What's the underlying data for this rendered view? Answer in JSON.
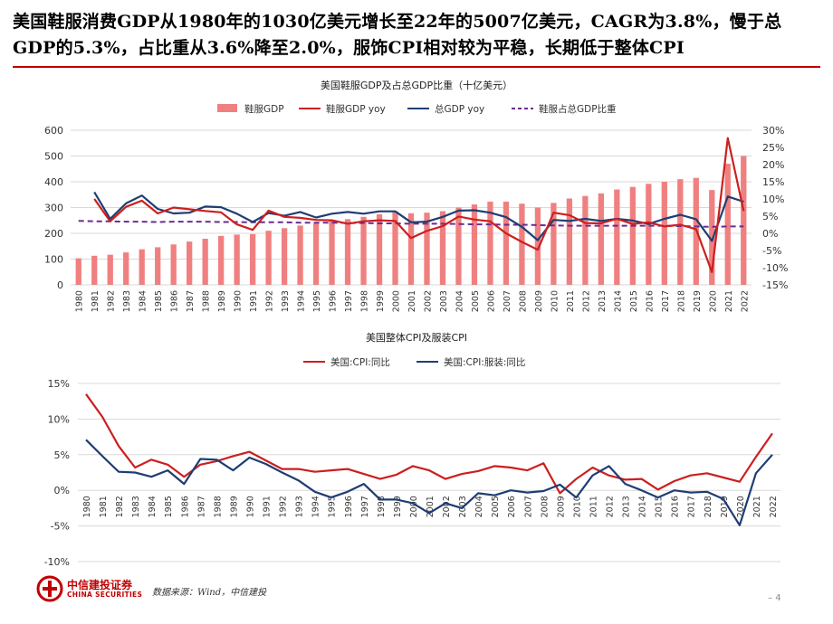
{
  "headline": "美国鞋服消费GDP从1980年的1030亿美元增长至22年的5007亿美元，CAGR为3.8%，慢于总GDP的5.3%，占比重从3.6%降至2.0%，服饰CPI相对较为平稳，长期低于整体CPI",
  "footer": {
    "logo_cn": "中信建投证券",
    "logo_en": "CHINA SECURITIES",
    "source": "数据来源：Wind，中信建投",
    "page_number": "4",
    "page_prefix": "–"
  },
  "colors": {
    "accent": "#c00000",
    "bar": "#f08080",
    "red_line": "#cc1f1f",
    "navy_line": "#1f3d73",
    "purple_dash": "#6a2c91",
    "grid": "#d9d9d9"
  },
  "chart_data": [
    {
      "type": "bar+line",
      "title": "美国鞋服GDP及占总GDP比重（十亿美元）",
      "legend_position": "top",
      "categories": [
        "1980",
        "1981",
        "1982",
        "1983",
        "1984",
        "1985",
        "1986",
        "1987",
        "1988",
        "1989",
        "1990",
        "1991",
        "1992",
        "1993",
        "1994",
        "1995",
        "1996",
        "1997",
        "1998",
        "1999",
        "2000",
        "2001",
        "2002",
        "2003",
        "2004",
        "2005",
        "2006",
        "2007",
        "2008",
        "2009",
        "2010",
        "2011",
        "2012",
        "2013",
        "2014",
        "2015",
        "2016",
        "2017",
        "2018",
        "2019",
        "2020",
        "2021",
        "2022"
      ],
      "y_left_ticks": [
        "0",
        "100",
        "200",
        "300",
        "400",
        "500",
        "600"
      ],
      "y_left_range": [
        0,
        600
      ],
      "y_right_ticks": [
        "30%",
        "25%",
        "20%",
        "15%",
        "10%",
        "5%",
        "0%",
        "-5%",
        "-10%",
        "-15%"
      ],
      "y_right_range": [
        -15,
        30
      ],
      "series": [
        {
          "name": "鞋服GDP",
          "axis": "left",
          "kind": "bar",
          "values": [
            103,
            113,
            117,
            126,
            138,
            146,
            157,
            168,
            179,
            190,
            195,
            197,
            210,
            220,
            230,
            239,
            248,
            255,
            264,
            274,
            284,
            278,
            280,
            286,
            300,
            312,
            323,
            323,
            315,
            300,
            318,
            335,
            345,
            355,
            370,
            380,
            392,
            400,
            410,
            415,
            368,
            470,
            500
          ]
        },
        {
          "name": "鞋服GDP yoy",
          "axis": "right",
          "kind": "line",
          "values": [
            null,
            10.0,
            3.5,
            7.7,
            9.5,
            5.8,
            7.5,
            7.0,
            6.5,
            6.1,
            2.6,
            1.0,
            6.6,
            4.8,
            4.5,
            3.9,
            3.8,
            2.8,
            3.5,
            3.8,
            3.6,
            -1.4,
            0.7,
            2.1,
            4.9,
            4.0,
            3.5,
            0.0,
            -2.5,
            -4.8,
            6.0,
            5.3,
            3.0,
            2.9,
            4.2,
            2.7,
            3.2,
            2.0,
            2.5,
            1.2,
            -11.3,
            27.7,
            6.5
          ]
        },
        {
          "name": "总GDP yoy",
          "axis": "right",
          "kind": "line",
          "values": [
            null,
            12.0,
            4.2,
            8.7,
            11.0,
            7.1,
            5.8,
            6.0,
            7.8,
            7.6,
            5.7,
            3.3,
            5.9,
            5.1,
            6.2,
            4.6,
            5.7,
            6.2,
            5.7,
            6.4,
            6.4,
            3.2,
            3.4,
            4.8,
            6.6,
            6.7,
            6.0,
            4.7,
            1.9,
            -2.0,
            3.9,
            3.6,
            4.2,
            3.6,
            4.2,
            3.7,
            2.7,
            4.2,
            5.4,
            4.1,
            -2.2,
            10.7,
            9.2
          ]
        },
        {
          "name": "鞋服占总GDP比重",
          "axis": "right",
          "kind": "dashed-line",
          "values": [
            3.6,
            3.5,
            3.5,
            3.4,
            3.4,
            3.3,
            3.4,
            3.4,
            3.4,
            3.3,
            3.3,
            3.2,
            3.2,
            3.2,
            3.1,
            3.1,
            3.1,
            3.0,
            3.0,
            2.9,
            2.9,
            2.8,
            2.8,
            2.8,
            2.7,
            2.6,
            2.6,
            2.5,
            2.5,
            2.4,
            2.3,
            2.2,
            2.2,
            2.2,
            2.2,
            2.2,
            2.2,
            2.2,
            2.1,
            2.0,
            1.9,
            2.0,
            2.0
          ]
        }
      ]
    },
    {
      "type": "line",
      "title": "美国整体CPI及服装CPI",
      "legend_position": "top",
      "categories": [
        "1980",
        "1981",
        "1982",
        "1983",
        "1984",
        "1985",
        "1986",
        "1987",
        "1988",
        "1989",
        "1990",
        "1991",
        "1992",
        "1993",
        "1994",
        "1995",
        "1996",
        "1997",
        "1998",
        "1999",
        "2000",
        "2001",
        "2002",
        "2003",
        "2004",
        "2005",
        "2006",
        "2007",
        "2008",
        "2009",
        "2010",
        "2011",
        "2012",
        "2013",
        "2014",
        "2015",
        "2016",
        "2017",
        "2018",
        "2019",
        "2020",
        "2021",
        "2022"
      ],
      "y_ticks": [
        "15%",
        "10%",
        "5%",
        "0%",
        "-5%",
        "-10%"
      ],
      "y_range": [
        -10,
        15
      ],
      "series": [
        {
          "name": "美国:CPI:同比",
          "values": [
            13.5,
            10.3,
            6.2,
            3.2,
            4.3,
            3.6,
            1.9,
            3.6,
            4.1,
            4.8,
            5.4,
            4.2,
            3.0,
            3.0,
            2.6,
            2.8,
            3.0,
            2.3,
            1.6,
            2.2,
            3.4,
            2.8,
            1.6,
            2.3,
            2.7,
            3.4,
            3.2,
            2.8,
            3.8,
            -0.4,
            1.6,
            3.2,
            2.1,
            1.5,
            1.6,
            0.1,
            1.3,
            2.1,
            2.4,
            1.8,
            1.2,
            4.7,
            8.0
          ]
        },
        {
          "name": "美国:CPI:服装:同比",
          "values": [
            7.1,
            4.8,
            2.6,
            2.5,
            1.9,
            2.8,
            0.9,
            4.4,
            4.3,
            2.8,
            4.6,
            3.7,
            2.5,
            1.4,
            -0.2,
            -1.0,
            -0.2,
            0.9,
            -1.3,
            -1.3,
            -1.8,
            -3.2,
            -1.8,
            -2.5,
            -0.4,
            -0.7,
            0.0,
            -0.3,
            -0.1,
            0.8,
            -1.0,
            2.1,
            3.4,
            0.9,
            0.0,
            -1.0,
            0.0,
            -0.3,
            -0.2,
            -1.2,
            -4.9,
            2.4,
            5.0
          ]
        }
      ]
    }
  ]
}
